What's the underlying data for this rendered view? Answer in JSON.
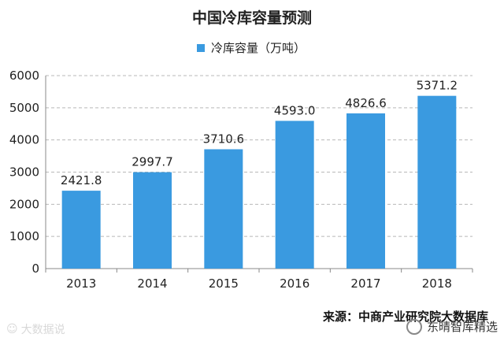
{
  "chart_data": {
    "type": "bar",
    "title": "中国冷库容量预测",
    "categories": [
      "2013",
      "2014",
      "2015",
      "2016",
      "2017",
      "2018"
    ],
    "series": [
      {
        "name": "冷库容量（万吨）",
        "values": [
          2421.8,
          2997.7,
          3710.6,
          4593.0,
          4826.6,
          5371.2
        ]
      }
    ],
    "data_labels": [
      "2421.8",
      "2997.7",
      "3710.6",
      "4593.0",
      "4826.6",
      "5371.2"
    ],
    "ylim": [
      0,
      6000
    ],
    "yticks": [
      0,
      1000,
      2000,
      3000,
      4000,
      5000,
      6000
    ],
    "xlabel": "",
    "ylabel": "",
    "grid": "dashed horizontal",
    "legend_position": "top-center",
    "bar_color": "#3a9ae0"
  },
  "source": "来源：中商产业研究院大数据库",
  "watermark_left": "大数据说",
  "watermark_right": "东晴智库精选"
}
